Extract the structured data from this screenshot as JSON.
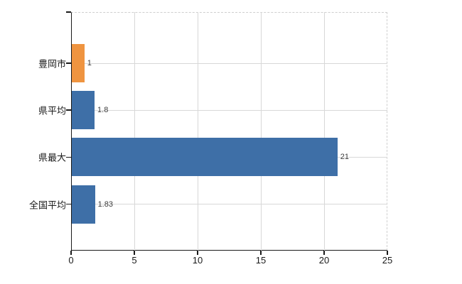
{
  "chart_data": {
    "type": "bar",
    "orientation": "horizontal",
    "title": "",
    "xlabel": "",
    "ylabel": "",
    "categories": [
      "豊岡市",
      "県平均",
      "県最大",
      "全国平均"
    ],
    "values": [
      1,
      1.8,
      21,
      1.83
    ],
    "value_labels": [
      "1",
      "1.8",
      "21",
      "1.83"
    ],
    "series_colors": [
      "#ef9440",
      "#3e6fa7",
      "#3e6fa7",
      "#3e6fa7"
    ],
    "highlight_category": "豊岡市",
    "xlim": [
      0,
      25
    ],
    "x_ticks": [
      0,
      5,
      10,
      15,
      20,
      25
    ],
    "x_tick_labels": [
      "0",
      "5",
      "10",
      "15",
      "20",
      "25"
    ],
    "grid": "on",
    "legend": "none",
    "colors": {
      "bar_default": "#3e6fa7",
      "bar_highlight": "#ef9440",
      "gridline": "#d8d8d8",
      "frame_dashed": "#cfcfcf",
      "axis": "#1a1a1a",
      "value_label": "#3c3c3c",
      "tick_label": "#1a1a1a"
    }
  }
}
